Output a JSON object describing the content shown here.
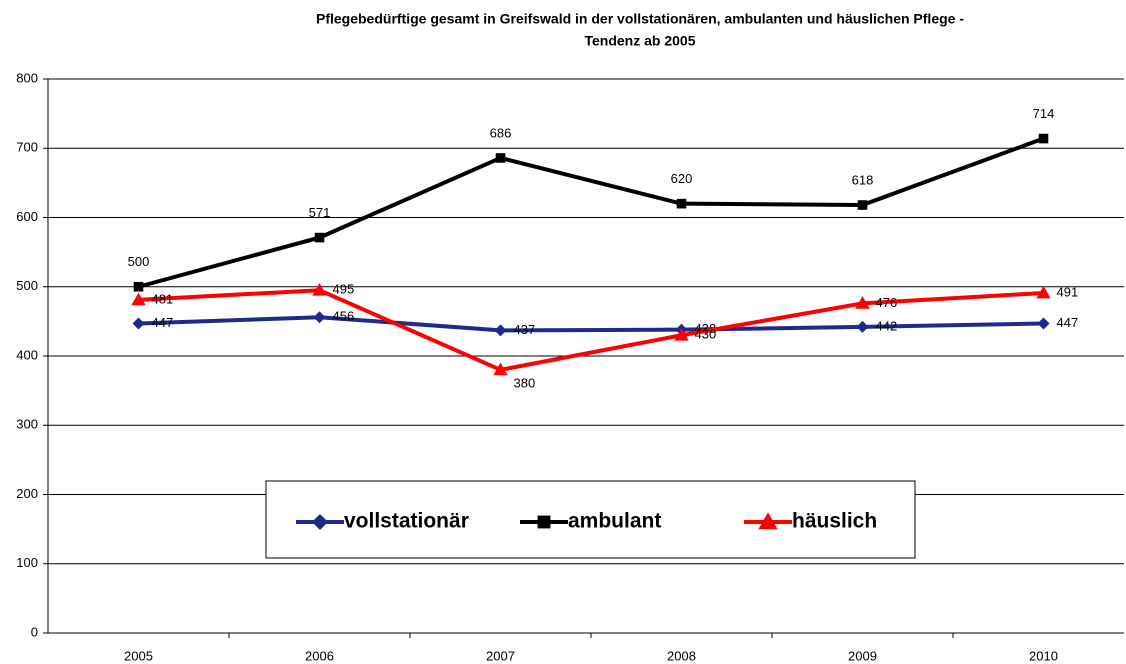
{
  "chart_data": {
    "type": "line",
    "title": [
      "Pflegebedürftige gesamt in Greifswald in der vollstationären, ambulanten und häuslichen Pflege -",
      "Tendenz ab 2005"
    ],
    "categories": [
      "2005",
      "2006",
      "2007",
      "2008",
      "2009",
      "2010"
    ],
    "series": [
      {
        "name": "vollstationär",
        "color": "#1f2a8c",
        "marker": "diamond",
        "values": [
          447,
          456,
          437,
          438,
          442,
          447
        ]
      },
      {
        "name": "ambulant",
        "color": "#000000",
        "marker": "square",
        "values": [
          500,
          571,
          686,
          620,
          618,
          714
        ]
      },
      {
        "name": "häuslich",
        "color": "#ff0000",
        "marker": "triangle",
        "values": [
          481,
          495,
          380,
          430,
          476,
          491
        ]
      }
    ],
    "ylim": [
      0,
      800
    ],
    "yticks": [
      0,
      100,
      200,
      300,
      400,
      500,
      600,
      700,
      800
    ],
    "grid": true
  }
}
